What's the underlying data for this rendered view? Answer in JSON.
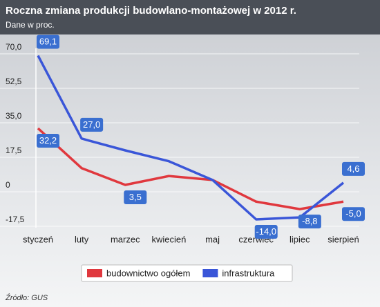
{
  "chart_data": {
    "type": "line",
    "title": "Roczna zmiana produkcji budowlano-montażowej w 2012 r.",
    "subtitle": "Dane w proc.",
    "source": "Źródło: GUS",
    "categories": [
      "styczeń",
      "luty",
      "marzec",
      "kwiecień",
      "maj",
      "czerwiec",
      "lipiec",
      "sierpień"
    ],
    "series": [
      {
        "name": "budownictwo ogółem",
        "color": "#e0383e",
        "values": [
          32.2,
          12,
          3.5,
          8,
          6,
          -5,
          -8.8,
          -5.0
        ],
        "value_labels": [
          "32,2",
          null,
          "3,5",
          null,
          null,
          null,
          "-8,8",
          "-5,0"
        ]
      },
      {
        "name": "infrastruktura",
        "color": "#3a56d8",
        "values": [
          69.1,
          27.0,
          21,
          15.5,
          6,
          -14.0,
          -13,
          4.6
        ],
        "value_labels": [
          "69,1",
          "27,0",
          null,
          null,
          null,
          "-14,0",
          null,
          "4,6"
        ]
      }
    ],
    "ylim": [
      -17.5,
      70
    ],
    "yticks": [
      {
        "value": -17.5,
        "label": "-17,5"
      },
      0,
      {
        "value": 17.5,
        "label": "17,5"
      },
      {
        "value": 35,
        "label": "35,0"
      },
      {
        "value": 52.5,
        "label": "52,5"
      },
      {
        "value": 70,
        "label": "70,0"
      }
    ],
    "grid": true
  }
}
